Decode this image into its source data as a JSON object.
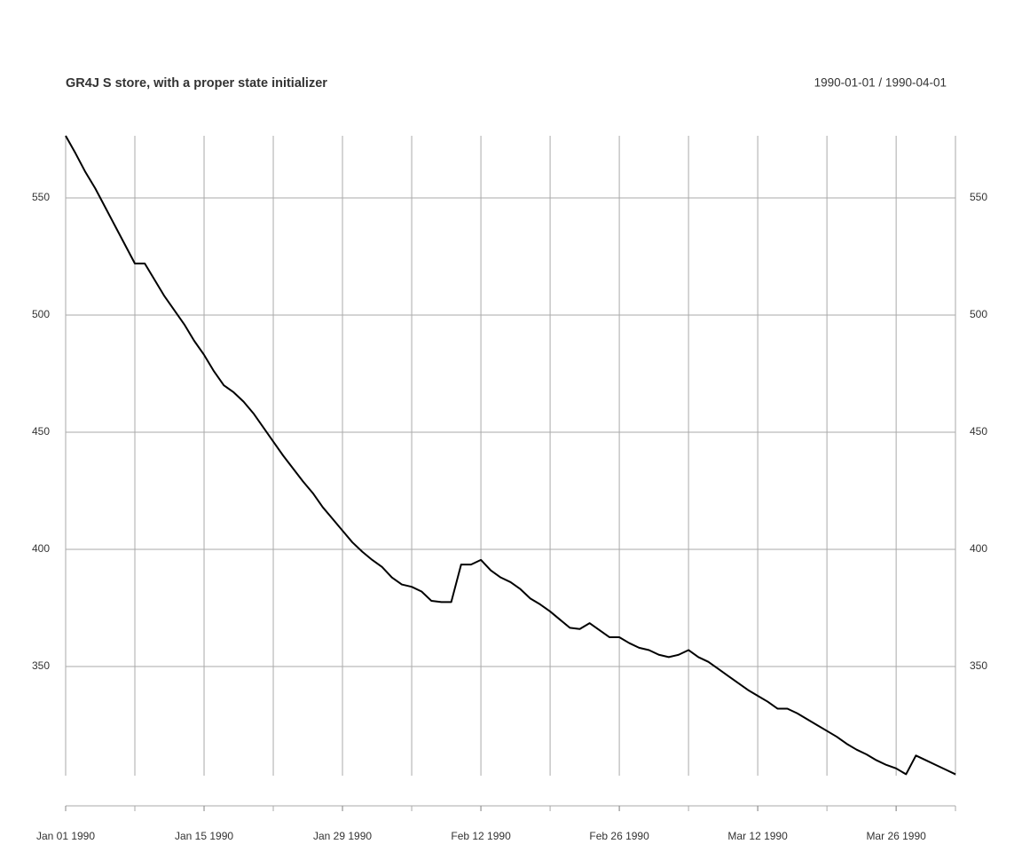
{
  "chart_data": {
    "type": "line",
    "title": "GR4J S store, with a proper state initializer",
    "date_range": "1990-01-01 / 1990-04-01",
    "x": [
      "1990-01-01",
      "1990-01-02",
      "1990-01-03",
      "1990-01-04",
      "1990-01-05",
      "1990-01-06",
      "1990-01-07",
      "1990-01-08",
      "1990-01-09",
      "1990-01-10",
      "1990-01-11",
      "1990-01-12",
      "1990-01-13",
      "1990-01-14",
      "1990-01-15",
      "1990-01-16",
      "1990-01-17",
      "1990-01-18",
      "1990-01-19",
      "1990-01-20",
      "1990-01-21",
      "1990-01-22",
      "1990-01-23",
      "1990-01-24",
      "1990-01-25",
      "1990-01-26",
      "1990-01-27",
      "1990-01-28",
      "1990-01-29",
      "1990-01-30",
      "1990-01-31",
      "1990-02-01",
      "1990-02-02",
      "1990-02-03",
      "1990-02-04",
      "1990-02-05",
      "1990-02-06",
      "1990-02-07",
      "1990-02-08",
      "1990-02-09",
      "1990-02-10",
      "1990-02-11",
      "1990-02-12",
      "1990-02-13",
      "1990-02-14",
      "1990-02-15",
      "1990-02-16",
      "1990-02-17",
      "1990-02-18",
      "1990-02-19",
      "1990-02-20",
      "1990-02-21",
      "1990-02-22",
      "1990-02-23",
      "1990-02-24",
      "1990-02-25",
      "1990-02-26",
      "1990-02-27",
      "1990-02-28",
      "1990-03-01",
      "1990-03-02",
      "1990-03-03",
      "1990-03-04",
      "1990-03-05",
      "1990-03-06",
      "1990-03-07",
      "1990-03-08",
      "1990-03-09",
      "1990-03-10",
      "1990-03-11",
      "1990-03-12",
      "1990-03-13",
      "1990-03-14",
      "1990-03-15",
      "1990-03-16",
      "1990-03-17",
      "1990-03-18",
      "1990-03-19",
      "1990-03-20",
      "1990-03-21",
      "1990-03-22",
      "1990-03-23",
      "1990-03-24",
      "1990-03-25",
      "1990-03-26",
      "1990-03-27",
      "1990-03-28",
      "1990-03-29",
      "1990-03-30",
      "1990-03-31",
      "1990-04-01"
    ],
    "values": [
      576.5,
      569,
      561,
      554,
      546,
      538,
      530,
      522,
      522,
      515,
      508,
      502,
      496,
      489,
      483,
      476,
      470,
      467,
      463,
      458,
      452,
      446,
      440,
      434.5,
      429,
      424,
      418,
      413,
      408,
      403,
      399,
      395.5,
      392.5,
      388,
      385,
      384,
      382,
      378,
      377.5,
      377.5,
      393.5,
      393.5,
      395.5,
      391,
      388,
      386,
      383,
      379,
      376.5,
      373.5,
      370,
      366.5,
      366,
      368.5,
      365.5,
      362.5,
      362.5,
      360,
      358,
      357,
      355,
      354,
      355,
      357,
      354,
      352,
      349,
      346,
      343,
      340,
      337.5,
      335,
      332,
      332,
      330,
      327.5,
      325,
      322.5,
      320,
      317,
      314.5,
      312.5,
      310,
      308,
      306.5,
      304,
      312,
      310,
      308,
      306,
      304
    ],
    "color": "#000000",
    "xlim": [
      "1990-01-01",
      "1990-04-01"
    ],
    "xticks": [
      {
        "value": "1990-01-01",
        "label": "Jan 01 1990"
      },
      {
        "value": "1990-01-15",
        "label": "Jan 15 1990"
      },
      {
        "value": "1990-01-29",
        "label": "Jan 29 1990"
      },
      {
        "value": "1990-02-12",
        "label": "Feb 12 1990"
      },
      {
        "value": "1990-02-26",
        "label": "Feb 26 1990"
      },
      {
        "value": "1990-03-12",
        "label": "Mar 12 1990"
      },
      {
        "value": "1990-03-26",
        "label": "Mar 26 1990"
      }
    ],
    "xminor": [
      "1990-01-01",
      "1990-01-08",
      "1990-01-15",
      "1990-01-22",
      "1990-01-29",
      "1990-02-05",
      "1990-02-12",
      "1990-02-19",
      "1990-02-26",
      "1990-03-05",
      "1990-03-12",
      "1990-03-19",
      "1990-03-26",
      "1990-04-01"
    ],
    "ylim": [
      303.4,
      576.5
    ],
    "yticks": [
      350,
      400,
      450,
      500,
      550
    ],
    "grid": true
  }
}
